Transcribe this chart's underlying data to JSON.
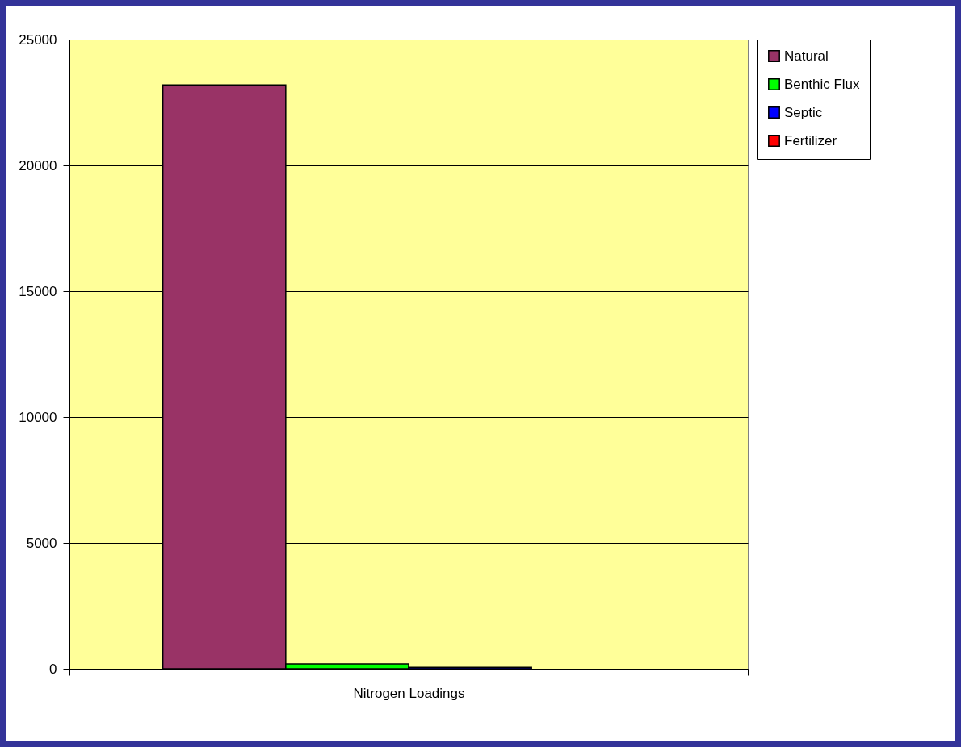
{
  "chart_data": {
    "type": "bar",
    "categories": [
      "Nitrogen Loadings"
    ],
    "series": [
      {
        "name": "Natural",
        "color": "#993366",
        "values": [
          23200
        ]
      },
      {
        "name": "Benthic Flux",
        "color": "#00ff00",
        "values": [
          190
        ]
      },
      {
        "name": "Septic",
        "color": "#0000ff",
        "values": [
          60
        ]
      },
      {
        "name": "Fertilizer",
        "color": "#ff0000",
        "values": [
          null
        ]
      }
    ],
    "ylim": [
      0,
      25000
    ],
    "yticks": [
      0,
      5000,
      10000,
      15000,
      20000,
      25000
    ],
    "grid": "y",
    "legend": "right"
  }
}
